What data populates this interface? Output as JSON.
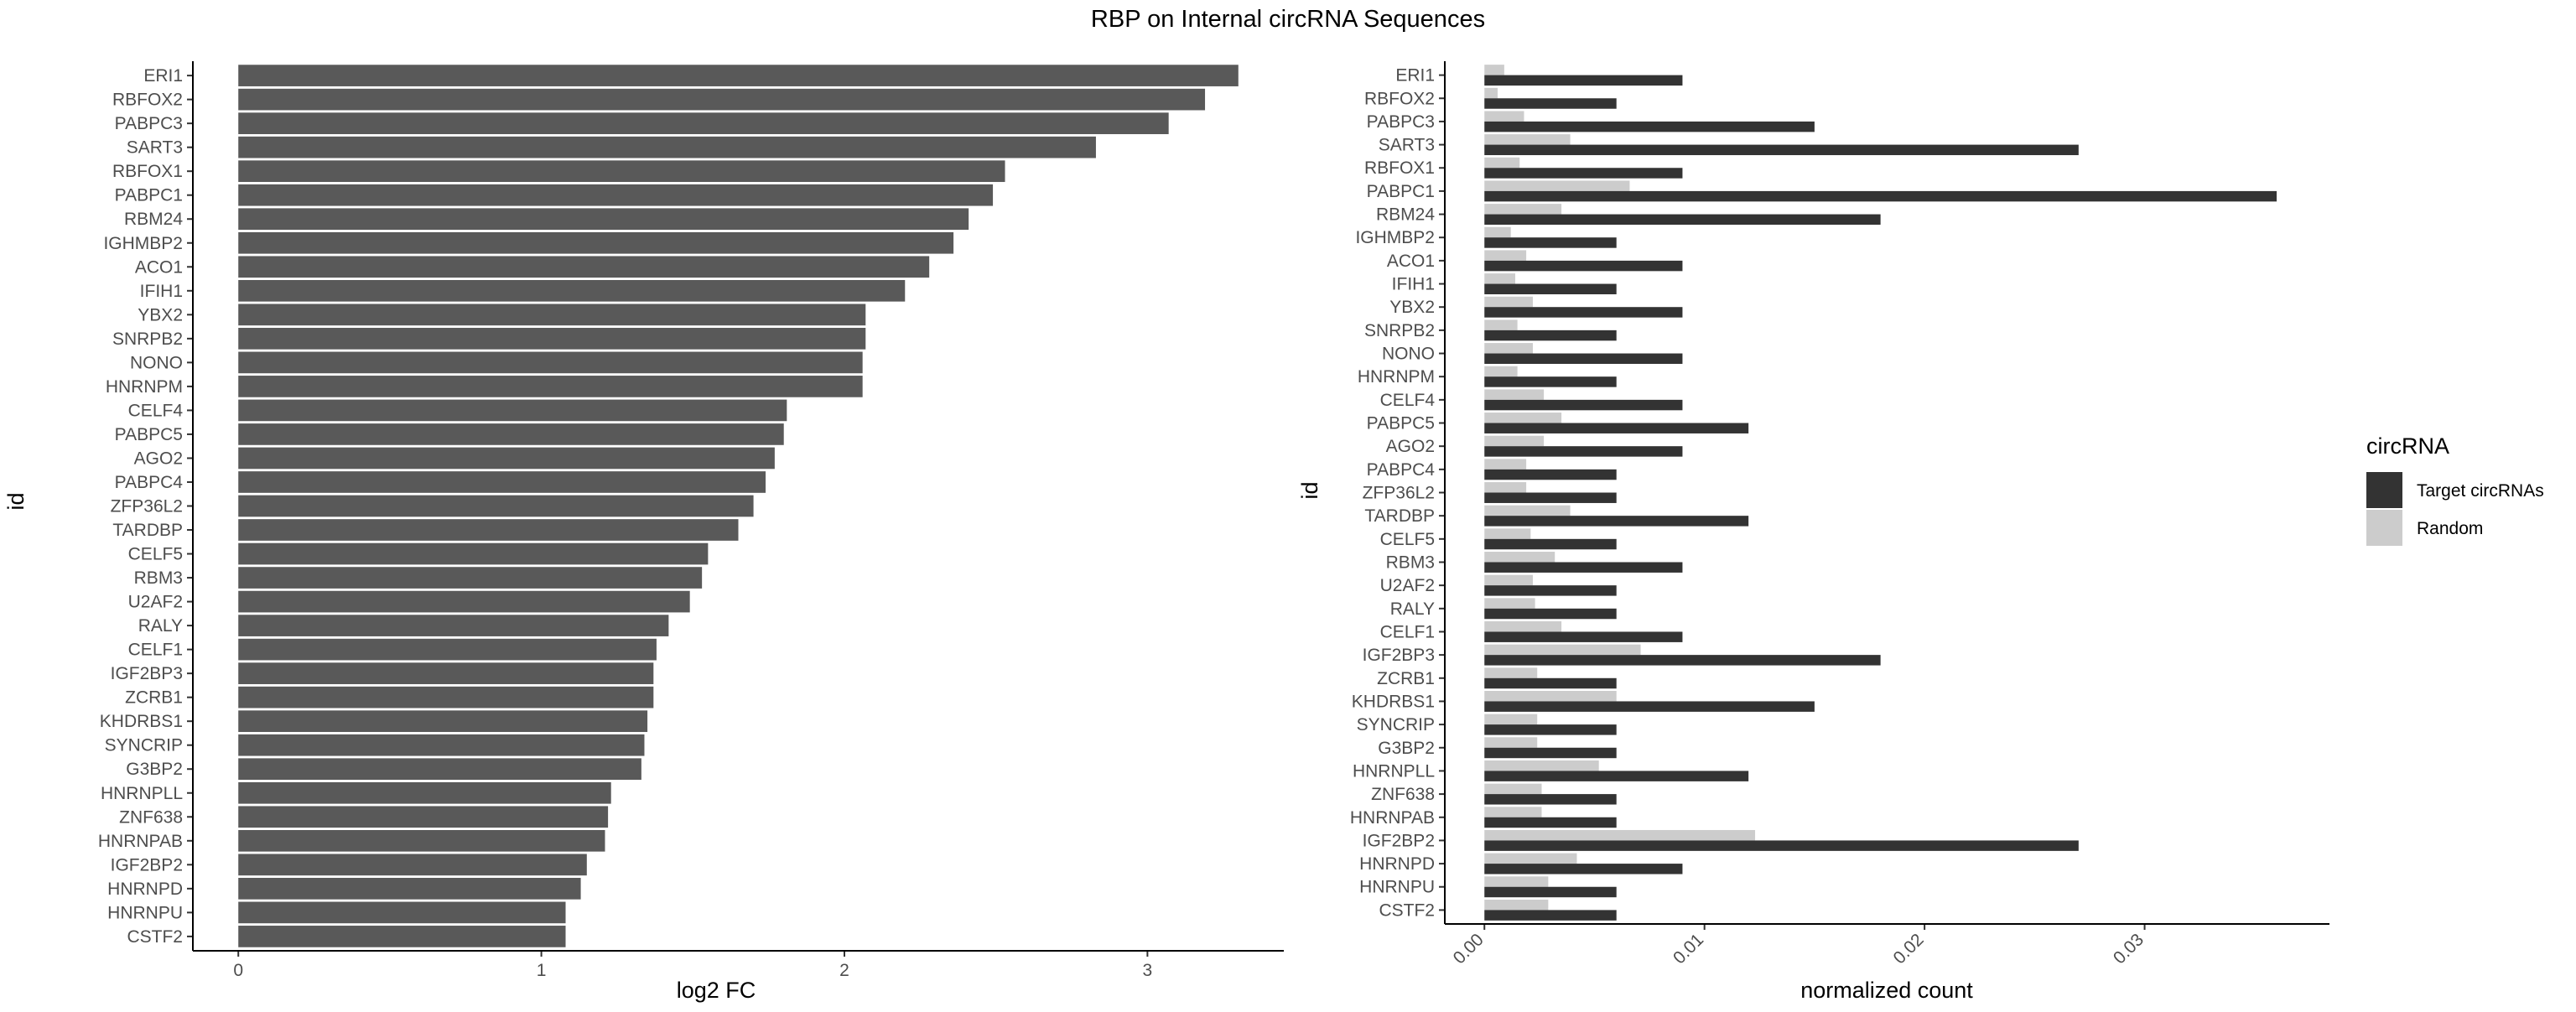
{
  "title": "RBP on Internal circRNA Sequences",
  "colors": {
    "fc_bar": "#595959",
    "target": "#333333",
    "random": "#cccccc",
    "axis": "#000000",
    "tick_text": "#4d4d4d"
  },
  "chart_data": [
    {
      "type": "bar",
      "orientation": "horizontal",
      "xlabel": "log2 FC",
      "ylabel": "id",
      "xlim": [
        -0.15,
        3.45
      ],
      "xticks": [
        "0",
        "1",
        "2",
        "3"
      ],
      "grid": false,
      "categories": [
        "ERI1",
        "RBFOX2",
        "PABPC3",
        "SART3",
        "RBFOX1",
        "PABPC1",
        "RBM24",
        "IGHMBP2",
        "ACO1",
        "IFIH1",
        "YBX2",
        "SNRPB2",
        "NONO",
        "HNRNPM",
        "CELF4",
        "PABPC5",
        "AGO2",
        "PABPC4",
        "ZFP36L2",
        "TARDBP",
        "CELF5",
        "RBM3",
        "U2AF2",
        "RALY",
        "CELF1",
        "IGF2BP3",
        "ZCRB1",
        "KHDRBS1",
        "SYNCRIP",
        "G3BP2",
        "HNRNPLL",
        "ZNF638",
        "HNRNPAB",
        "IGF2BP2",
        "HNRNPD",
        "HNRNPU",
        "CSTF2"
      ],
      "values": [
        3.3,
        3.19,
        3.07,
        2.83,
        2.53,
        2.49,
        2.41,
        2.36,
        2.28,
        2.2,
        2.07,
        2.07,
        2.06,
        2.06,
        1.81,
        1.8,
        1.77,
        1.74,
        1.7,
        1.65,
        1.55,
        1.53,
        1.49,
        1.42,
        1.38,
        1.37,
        1.37,
        1.35,
        1.34,
        1.33,
        1.23,
        1.22,
        1.21,
        1.15,
        1.13,
        1.08,
        1.08
      ]
    },
    {
      "type": "bar",
      "orientation": "horizontal",
      "xlabel": "normalized count",
      "ylabel": "id",
      "xlim": [
        -0.0018,
        0.0384
      ],
      "xticks": [
        "0.00",
        "0.01",
        "0.02",
        "0.03"
      ],
      "grid": false,
      "legend": {
        "title": "circRNA",
        "position": "right"
      },
      "categories": [
        "ERI1",
        "RBFOX2",
        "PABPC3",
        "SART3",
        "RBFOX1",
        "PABPC1",
        "RBM24",
        "IGHMBP2",
        "ACO1",
        "IFIH1",
        "YBX2",
        "SNRPB2",
        "NONO",
        "HNRNPM",
        "CELF4",
        "PABPC5",
        "AGO2",
        "PABPC4",
        "ZFP36L2",
        "TARDBP",
        "CELF5",
        "RBM3",
        "U2AF2",
        "RALY",
        "CELF1",
        "IGF2BP3",
        "ZCRB1",
        "KHDRBS1",
        "SYNCRIP",
        "G3BP2",
        "HNRNPLL",
        "ZNF638",
        "HNRNPAB",
        "IGF2BP2",
        "HNRNPD",
        "HNRNPU",
        "CSTF2"
      ],
      "series": [
        {
          "name": "Target circRNAs",
          "values": [
            0.009,
            0.006,
            0.015,
            0.027,
            0.009,
            0.036,
            0.018,
            0.006,
            0.009,
            0.006,
            0.009,
            0.006,
            0.009,
            0.006,
            0.009,
            0.012,
            0.009,
            0.006,
            0.006,
            0.012,
            0.006,
            0.009,
            0.006,
            0.006,
            0.009,
            0.018,
            0.006,
            0.015,
            0.006,
            0.006,
            0.012,
            0.006,
            0.006,
            0.027,
            0.009,
            0.006,
            0.006
          ]
        },
        {
          "name": "Random",
          "values": [
            0.0009,
            0.0006,
            0.0018,
            0.0039,
            0.0016,
            0.0066,
            0.0035,
            0.0012,
            0.0019,
            0.0014,
            0.0022,
            0.0015,
            0.0022,
            0.0015,
            0.0027,
            0.0035,
            0.0027,
            0.0019,
            0.0019,
            0.0039,
            0.0021,
            0.0032,
            0.0022,
            0.0023,
            0.0035,
            0.0071,
            0.0024,
            0.006,
            0.0024,
            0.0024,
            0.0052,
            0.0026,
            0.0026,
            0.0123,
            0.0042,
            0.0029,
            0.0029
          ]
        }
      ]
    }
  ]
}
